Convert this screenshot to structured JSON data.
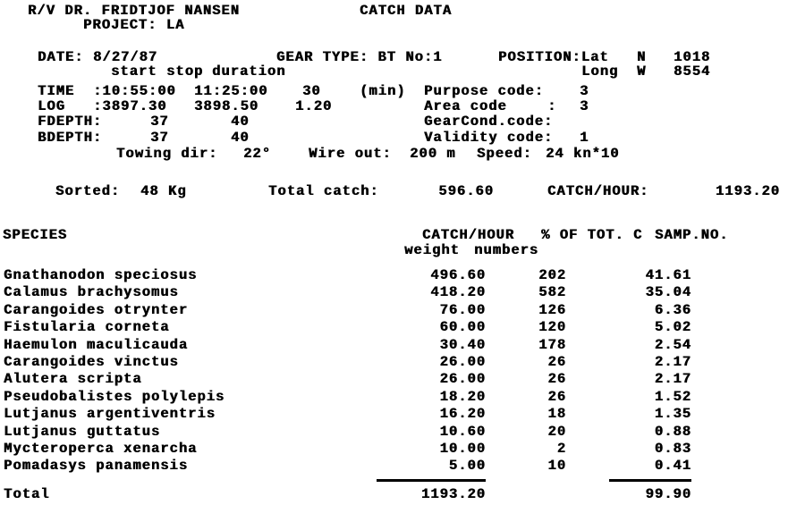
{
  "header": {
    "vessel": "R/V DR. FRIDTJOF NANSEN",
    "report_title": "CATCH DATA",
    "project": "PROJECT: LA",
    "date_label": "DATE:",
    "date": "8/27/87",
    "gear_type": "GEAR TYPE: BT No:1",
    "position_label": "POSITION:Lat",
    "lat_hemisphere": "N",
    "lat": "1018",
    "long_label": "Long",
    "long_hemisphere": "W",
    "long": "8554",
    "col_start": "start",
    "col_stop": "stop",
    "col_duration": "duration",
    "time_label": "TIME",
    "time_start": ":10:55:00",
    "time_stop": "11:25:00",
    "duration": "30",
    "duration_unit": "(min)",
    "purpose_label": "Purpose code:",
    "purpose_code": "3",
    "log_label": "LOG",
    "log_start": ":3897.30",
    "log_stop": "3898.50",
    "log_dist": "1.20",
    "area_label": "Area code",
    "area_colon": ":",
    "area_code": "3",
    "fdepth_label": "FDEPTH:",
    "fdepth_start": "37",
    "fdepth_stop": "40",
    "gearcond_label": "GearCond.code:",
    "bdepth_label": "BDEPTH:",
    "bdepth_start": "37",
    "bdepth_stop": "40",
    "validity_label": "Validity code:",
    "validity_code": "1",
    "towing_label": "Towing dir:",
    "towing_dir": "22°",
    "wire_label": "Wire out:",
    "wire_out": "200 m",
    "speed_label": "Speed:",
    "speed": "24 kn*10",
    "sorted_label": "Sorted:",
    "sorted": "48 Kg",
    "total_catch_label": "Total catch:",
    "total_catch": "596.60",
    "catch_hour_label": "CATCH/HOUR:",
    "catch_hour": "1193.20"
  },
  "table": {
    "col_species": "SPECIES",
    "col_catch_hour": "CATCH/HOUR",
    "col_pct": "% OF TOT. C",
    "col_samp": "SAMP.NO.",
    "sub_weight": "weight",
    "sub_numbers": "numbers",
    "rows": [
      {
        "species": "Gnathanodon speciosus",
        "weight": "496.60",
        "numbers": "202",
        "pct": "41.61"
      },
      {
        "species": "Calamus brachysomus",
        "weight": "418.20",
        "numbers": "582",
        "pct": "35.04"
      },
      {
        "species": "Carangoides otrynter",
        "weight": "76.00",
        "numbers": "126",
        "pct": "6.36"
      },
      {
        "species": "Fistularia corneta",
        "weight": "60.00",
        "numbers": "120",
        "pct": "5.02"
      },
      {
        "species": "Haemulon maculicauda",
        "weight": "30.40",
        "numbers": "178",
        "pct": "2.54"
      },
      {
        "species": "Carangoides vinctus",
        "weight": "26.00",
        "numbers": "26",
        "pct": "2.17"
      },
      {
        "species": "Alutera scripta",
        "weight": "26.00",
        "numbers": "26",
        "pct": "2.17"
      },
      {
        "species": "Pseudobalistes polylepis",
        "weight": "18.20",
        "numbers": "26",
        "pct": "1.52"
      },
      {
        "species": "Lutjanus argentiventris",
        "weight": "16.20",
        "numbers": "18",
        "pct": "1.35"
      },
      {
        "species": "Lutjanus guttatus",
        "weight": "10.60",
        "numbers": "20",
        "pct": "0.88"
      },
      {
        "species": "Mycteroperca xenarcha",
        "weight": "10.00",
        "numbers": "2",
        "pct": "0.83"
      },
      {
        "species": "Pomadasys panamensis",
        "weight": "5.00",
        "numbers": "10",
        "pct": "0.41"
      }
    ],
    "total_label": "Total",
    "total_weight": "1193.20",
    "total_pct": "99.90"
  }
}
